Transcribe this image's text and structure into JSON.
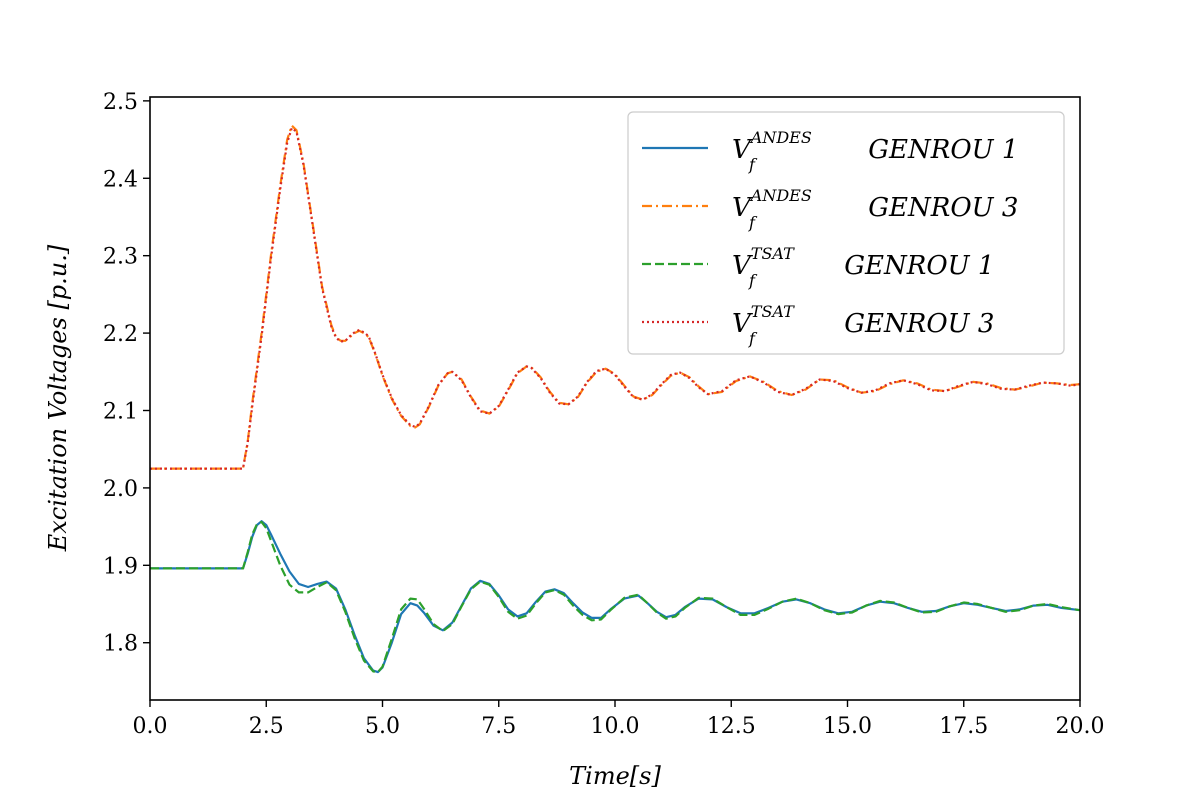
{
  "chart_data": {
    "type": "line",
    "title": "",
    "xlabel": "Time[s]",
    "ylabel": "Excitation Voltages [p.u.]",
    "xlim": [
      0,
      20
    ],
    "ylim": [
      1.726,
      2.505
    ],
    "xticks": [
      "0.0",
      "2.5",
      "5.0",
      "7.5",
      "10.0",
      "12.5",
      "15.0",
      "17.5",
      "20.0"
    ],
    "yticks": [
      "1.8",
      "1.9",
      "2.0",
      "2.1",
      "2.2",
      "2.3",
      "2.4",
      "2.5"
    ],
    "grid": false,
    "legend_position": "top-right",
    "series": [
      {
        "name": "V_f^ANDES GENROU 1",
        "label_base": "V",
        "label_sub": "f",
        "label_sup": "ANDES",
        "label_rest": " GENROU 1",
        "color": "#1f77b4",
        "dash": "solid",
        "x": [
          0,
          2.0,
          2.1,
          2.2,
          2.3,
          2.4,
          2.5,
          2.6,
          2.8,
          3.0,
          3.2,
          3.4,
          3.6,
          3.8,
          4.0,
          4.2,
          4.4,
          4.6,
          4.8,
          4.9,
          5.0,
          5.2,
          5.4,
          5.6,
          5.75,
          5.9,
          6.1,
          6.3,
          6.5,
          6.7,
          6.9,
          7.1,
          7.3,
          7.5,
          7.7,
          7.9,
          8.1,
          8.3,
          8.5,
          8.7,
          8.9,
          9.1,
          9.3,
          9.5,
          9.7,
          9.9,
          10.2,
          10.5,
          10.7,
          10.9,
          11.1,
          11.3,
          11.5,
          11.8,
          12.1,
          12.4,
          12.7,
          13.0,
          13.3,
          13.6,
          13.9,
          14.2,
          14.5,
          14.8,
          15.1,
          15.4,
          15.7,
          16.0,
          16.3,
          16.6,
          16.9,
          17.2,
          17.5,
          17.8,
          18.1,
          18.4,
          18.7,
          19.0,
          19.3,
          19.6,
          20.0
        ],
        "y": [
          1.896,
          1.896,
          1.915,
          1.937,
          1.952,
          1.957,
          1.952,
          1.94,
          1.915,
          1.892,
          1.876,
          1.872,
          1.876,
          1.879,
          1.87,
          1.843,
          1.81,
          1.78,
          1.764,
          1.762,
          1.768,
          1.8,
          1.837,
          1.851,
          1.848,
          1.838,
          1.822,
          1.816,
          1.826,
          1.848,
          1.87,
          1.88,
          1.876,
          1.861,
          1.843,
          1.834,
          1.838,
          1.853,
          1.866,
          1.869,
          1.864,
          1.851,
          1.839,
          1.832,
          1.832,
          1.843,
          1.857,
          1.861,
          1.851,
          1.84,
          1.833,
          1.836,
          1.846,
          1.857,
          1.856,
          1.846,
          1.838,
          1.838,
          1.845,
          1.853,
          1.856,
          1.851,
          1.843,
          1.838,
          1.84,
          1.848,
          1.853,
          1.851,
          1.845,
          1.84,
          1.841,
          1.847,
          1.851,
          1.849,
          1.845,
          1.841,
          1.843,
          1.848,
          1.849,
          1.845,
          1.842
        ]
      },
      {
        "name": "V_f^ANDES GENROU 3",
        "label_base": "V",
        "label_sub": "f",
        "label_sup": "ANDES",
        "label_rest": " GENROU 3",
        "color": "#ff7f0e",
        "dash": "dashdot",
        "x": [
          0,
          2.0,
          2.1,
          2.2,
          2.4,
          2.6,
          2.8,
          2.95,
          3.05,
          3.15,
          3.3,
          3.5,
          3.7,
          3.9,
          4.0,
          4.1,
          4.2,
          4.3,
          4.4,
          4.5,
          4.6,
          4.7,
          4.8,
          4.9,
          5.0,
          5.2,
          5.4,
          5.6,
          5.7,
          5.8,
          6.0,
          6.2,
          6.4,
          6.5,
          6.7,
          6.9,
          7.1,
          7.3,
          7.5,
          7.7,
          7.9,
          8.1,
          8.2,
          8.4,
          8.6,
          8.8,
          9.0,
          9.2,
          9.4,
          9.6,
          9.8,
          10.0,
          10.2,
          10.4,
          10.6,
          10.8,
          11.0,
          11.2,
          11.4,
          11.6,
          11.8,
          12.0,
          12.3,
          12.6,
          12.9,
          13.2,
          13.5,
          13.8,
          14.1,
          14.4,
          14.7,
          15.0,
          15.3,
          15.6,
          15.9,
          16.2,
          16.5,
          16.8,
          17.1,
          17.4,
          17.7,
          18.0,
          18.3,
          18.6,
          18.9,
          19.2,
          19.5,
          19.8,
          20.0
        ],
        "y": [
          2.025,
          2.025,
          2.06,
          2.11,
          2.2,
          2.3,
          2.39,
          2.45,
          2.468,
          2.462,
          2.42,
          2.34,
          2.26,
          2.21,
          2.195,
          2.19,
          2.19,
          2.195,
          2.2,
          2.203,
          2.2,
          2.195,
          2.18,
          2.163,
          2.145,
          2.115,
          2.093,
          2.08,
          2.078,
          2.082,
          2.105,
          2.132,
          2.148,
          2.15,
          2.14,
          2.118,
          2.1,
          2.096,
          2.105,
          2.126,
          2.148,
          2.157,
          2.156,
          2.143,
          2.124,
          2.11,
          2.108,
          2.117,
          2.136,
          2.15,
          2.154,
          2.147,
          2.132,
          2.118,
          2.114,
          2.12,
          2.133,
          2.145,
          2.149,
          2.143,
          2.131,
          2.121,
          2.124,
          2.138,
          2.144,
          2.137,
          2.125,
          2.12,
          2.127,
          2.14,
          2.139,
          2.13,
          2.123,
          2.125,
          2.134,
          2.139,
          2.135,
          2.127,
          2.125,
          2.131,
          2.137,
          2.135,
          2.129,
          2.127,
          2.131,
          2.136,
          2.135,
          2.133,
          2.134
        ]
      },
      {
        "name": "V_f^TSAT GENROU 1",
        "label_base": "V",
        "label_sub": "f",
        "label_sup": "TSAT",
        "label_rest": " GENROU 1",
        "color": "#2ca02c",
        "dash": "dashed",
        "x": [
          0,
          2.0,
          2.1,
          2.2,
          2.3,
          2.4,
          2.5,
          2.6,
          2.8,
          3.0,
          3.2,
          3.4,
          3.6,
          3.8,
          4.0,
          4.2,
          4.4,
          4.6,
          4.8,
          4.9,
          5.0,
          5.2,
          5.4,
          5.6,
          5.75,
          5.9,
          6.1,
          6.3,
          6.5,
          6.7,
          6.9,
          7.1,
          7.3,
          7.5,
          7.7,
          7.9,
          8.1,
          8.3,
          8.5,
          8.7,
          8.9,
          9.1,
          9.3,
          9.5,
          9.7,
          9.9,
          10.2,
          10.5,
          10.7,
          10.9,
          11.1,
          11.3,
          11.5,
          11.8,
          12.1,
          12.4,
          12.7,
          13.0,
          13.3,
          13.6,
          13.9,
          14.2,
          14.5,
          14.8,
          15.1,
          15.4,
          15.7,
          16.0,
          16.3,
          16.6,
          16.9,
          17.2,
          17.5,
          17.8,
          18.1,
          18.4,
          18.7,
          19.0,
          19.3,
          19.6,
          20.0
        ],
        "y": [
          1.896,
          1.896,
          1.917,
          1.94,
          1.953,
          1.956,
          1.948,
          1.932,
          1.9,
          1.875,
          1.865,
          1.865,
          1.872,
          1.878,
          1.868,
          1.84,
          1.806,
          1.777,
          1.763,
          1.762,
          1.769,
          1.805,
          1.843,
          1.857,
          1.856,
          1.843,
          1.824,
          1.815,
          1.824,
          1.847,
          1.869,
          1.879,
          1.875,
          1.859,
          1.84,
          1.831,
          1.835,
          1.851,
          1.865,
          1.868,
          1.862,
          1.848,
          1.836,
          1.829,
          1.83,
          1.842,
          1.858,
          1.862,
          1.851,
          1.839,
          1.831,
          1.834,
          1.845,
          1.858,
          1.857,
          1.846,
          1.836,
          1.836,
          1.844,
          1.853,
          1.857,
          1.851,
          1.842,
          1.837,
          1.839,
          1.848,
          1.854,
          1.852,
          1.845,
          1.839,
          1.84,
          1.847,
          1.852,
          1.85,
          1.845,
          1.84,
          1.842,
          1.848,
          1.85,
          1.846,
          1.842
        ]
      },
      {
        "name": "V_f^TSAT GENROU 3",
        "label_base": "V",
        "label_sub": "f",
        "label_sup": "TSAT",
        "label_rest": " GENROU 3",
        "color": "#d62728",
        "dash": "dotted",
        "x": [
          0,
          2.0,
          2.1,
          2.2,
          2.4,
          2.6,
          2.8,
          2.95,
          3.05,
          3.15,
          3.3,
          3.5,
          3.7,
          3.9,
          4.0,
          4.1,
          4.2,
          4.3,
          4.4,
          4.5,
          4.6,
          4.7,
          4.8,
          4.9,
          5.0,
          5.2,
          5.4,
          5.6,
          5.7,
          5.8,
          6.0,
          6.2,
          6.4,
          6.5,
          6.7,
          6.9,
          7.1,
          7.3,
          7.5,
          7.7,
          7.9,
          8.1,
          8.2,
          8.4,
          8.6,
          8.8,
          9.0,
          9.2,
          9.4,
          9.6,
          9.8,
          10.0,
          10.2,
          10.4,
          10.6,
          10.8,
          11.0,
          11.2,
          11.4,
          11.6,
          11.8,
          12.0,
          12.3,
          12.6,
          12.9,
          13.2,
          13.5,
          13.8,
          14.1,
          14.4,
          14.7,
          15.0,
          15.3,
          15.6,
          15.9,
          16.2,
          16.5,
          16.8,
          17.1,
          17.4,
          17.7,
          18.0,
          18.3,
          18.6,
          18.9,
          19.2,
          19.5,
          19.8,
          20.0
        ],
        "y": [
          2.025,
          2.025,
          2.058,
          2.106,
          2.196,
          2.296,
          2.386,
          2.446,
          2.465,
          2.46,
          2.418,
          2.338,
          2.258,
          2.208,
          2.194,
          2.189,
          2.19,
          2.196,
          2.201,
          2.204,
          2.201,
          2.196,
          2.181,
          2.164,
          2.146,
          2.116,
          2.094,
          2.081,
          2.079,
          2.083,
          2.106,
          2.133,
          2.148,
          2.15,
          2.139,
          2.117,
          2.099,
          2.096,
          2.106,
          2.127,
          2.149,
          2.157,
          2.155,
          2.142,
          2.123,
          2.109,
          2.108,
          2.118,
          2.137,
          2.151,
          2.154,
          2.146,
          2.131,
          2.117,
          2.114,
          2.121,
          2.134,
          2.146,
          2.149,
          2.142,
          2.13,
          2.121,
          2.125,
          2.139,
          2.144,
          2.136,
          2.124,
          2.12,
          2.128,
          2.14,
          2.138,
          2.129,
          2.123,
          2.126,
          2.135,
          2.139,
          2.134,
          2.126,
          2.125,
          2.132,
          2.137,
          2.134,
          2.128,
          2.127,
          2.132,
          2.136,
          2.135,
          2.132,
          2.134
        ]
      }
    ]
  }
}
